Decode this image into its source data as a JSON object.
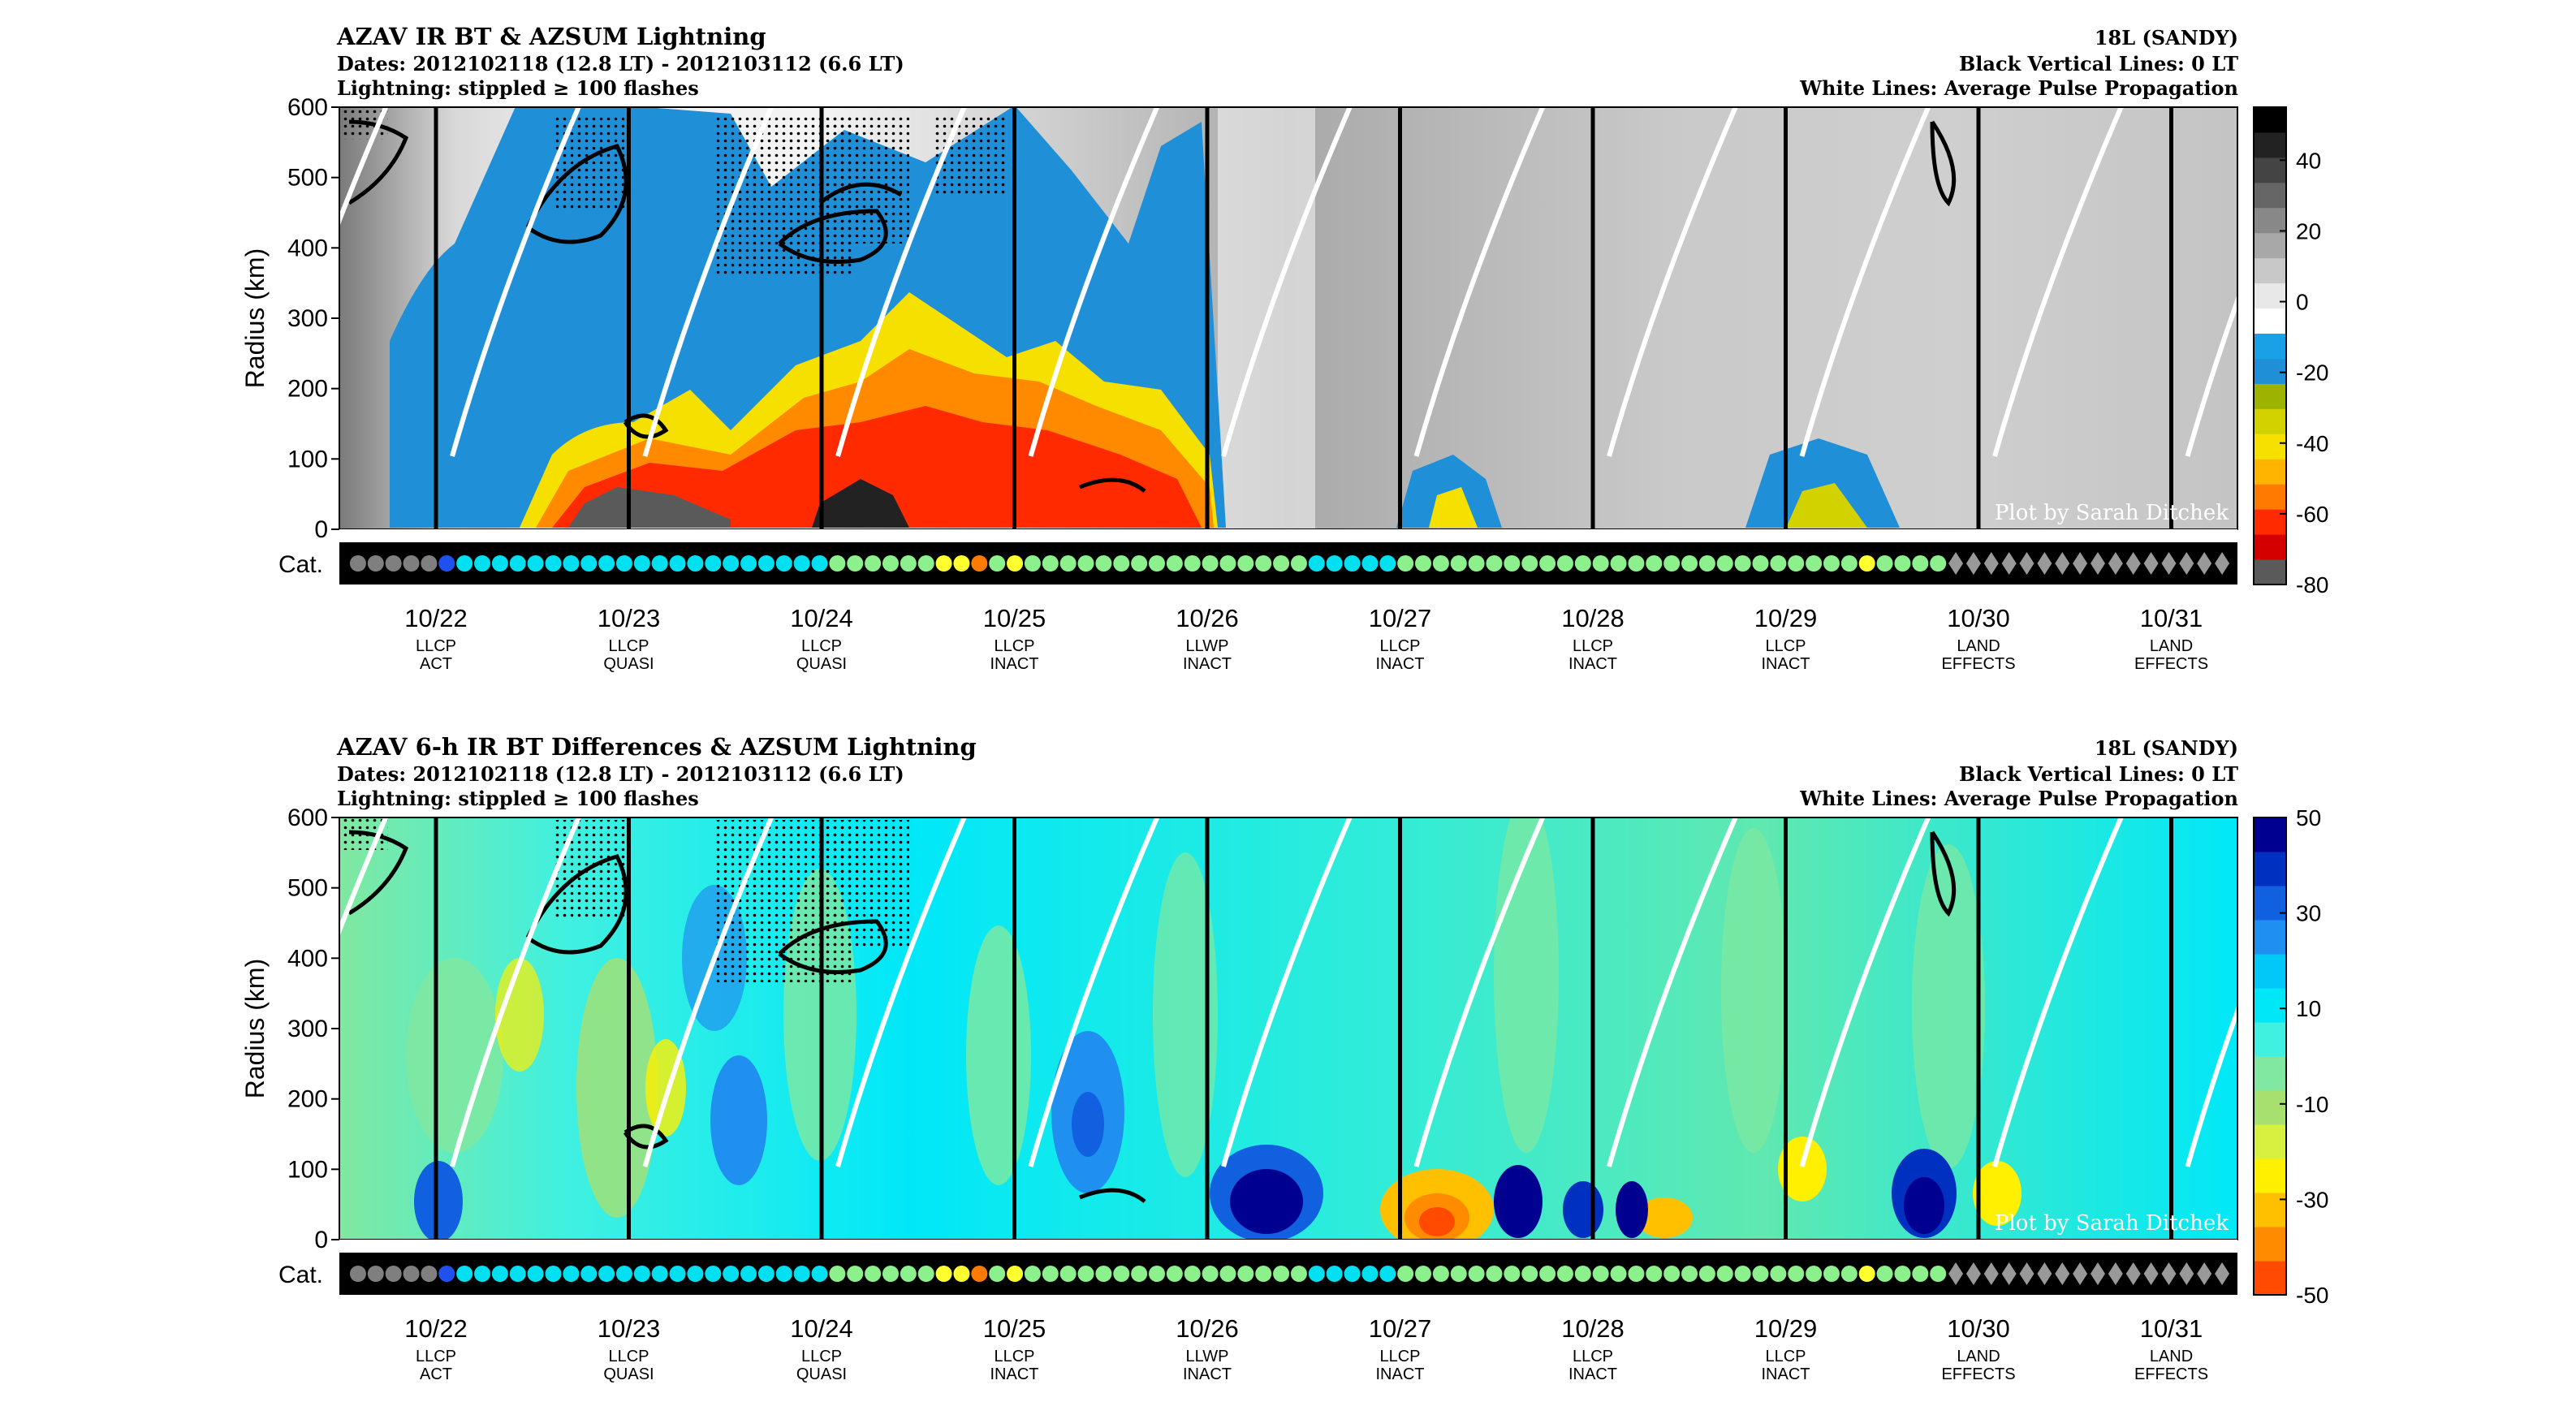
{
  "chart_data": [
    {
      "type": "heatmap",
      "title": "AZAV IR BT & AZSUM Lightning",
      "subtitle_dates": "Dates: 2012102118 (12.8 LT) - 2012103112 (6.6 LT)",
      "subtitle_lightning": "Lightning: stippled ≥ 100 flashes",
      "storm": "18L (SANDY)",
      "note_black": "Black Vertical Lines: 0 LT",
      "note_white": "White Lines: Average Pulse Propagation",
      "credit": "Plot by Sarah Ditchek",
      "ylabel": "Radius (km)",
      "yticks": [
        "600",
        "500",
        "400",
        "300",
        "200",
        "100",
        "0"
      ],
      "ylim": [
        0,
        600
      ],
      "cat_label": "Cat.",
      "colorbar_ticks": [
        "40",
        "20",
        "0",
        "-20",
        "-40",
        "-60",
        "-80"
      ],
      "colorbar_range": [
        -80,
        55
      ],
      "colorbar_colors": [
        "#5a5a5a",
        "#d40000",
        "#ff2a00",
        "#ff7a00",
        "#ffb400",
        "#f5e000",
        "#d2d200",
        "#9cb400",
        "#1f8fd8",
        "#1aa0e6",
        "#ffffff",
        "#e8e8e8",
        "#c8c8c8",
        "#a8a8a8",
        "#888888",
        "#666666",
        "#444444",
        "#222222",
        "#000000"
      ]
    },
    {
      "type": "heatmap",
      "title": "AZAV 6-h IR BT Differences & AZSUM Lightning",
      "subtitle_dates": "Dates: 2012102118 (12.8 LT) - 2012103112 (6.6 LT)",
      "subtitle_lightning": "Lightning: stippled ≥ 100 flashes",
      "storm": "18L (SANDY)",
      "note_black": "Black Vertical Lines: 0 LT",
      "note_white": "White Lines: Average Pulse Propagation",
      "credit": "Plot by Sarah Ditchek",
      "ylabel": "Radius (km)",
      "yticks": [
        "600",
        "500",
        "400",
        "300",
        "200",
        "100",
        "0"
      ],
      "ylim": [
        0,
        600
      ],
      "cat_label": "Cat.",
      "colorbar_ticks": [
        "50",
        "30",
        "10",
        "-10",
        "-30",
        "-50"
      ],
      "colorbar_range": [
        -50,
        50
      ],
      "colorbar_colors": [
        "#ff4a00",
        "#ff8c00",
        "#ffc000",
        "#fff000",
        "#d8f040",
        "#a8e070",
        "#80e8a0",
        "#40f0e0",
        "#00e8f8",
        "#00c8f8",
        "#2090f0",
        "#1060e0",
        "#0030c0",
        "#000090"
      ]
    }
  ],
  "x_axis": {
    "dates": [
      "10/22",
      "10/23",
      "10/24",
      "10/25",
      "10/26",
      "10/27",
      "10/28",
      "10/29",
      "10/30",
      "10/31"
    ],
    "labels_line1": [
      "LLCP",
      "LLCP",
      "LLCP",
      "LLCP",
      "LLWP",
      "LLCP",
      "LLCP",
      "LLCP",
      "LAND",
      "LAND"
    ],
    "labels_line2": [
      "ACT",
      "QUASI",
      "QUASI",
      "INACT",
      "INACT",
      "INACT",
      "INACT",
      "INACT",
      "EFFECTS",
      "EFFECTS"
    ]
  },
  "category_sequence": [
    "TD",
    "TD",
    "TD",
    "TD",
    "TD",
    "TS",
    "TS",
    "TS",
    "TS",
    "TS",
    "TS",
    "TS",
    "TS",
    "TS",
    "TS",
    "TS",
    "TS",
    "TS",
    "TS",
    "TS",
    "TS",
    "TS",
    "TS",
    "TS",
    "TS",
    "TS",
    "TS",
    "C1",
    "C1",
    "C1",
    "C1",
    "C1",
    "C1",
    "C2",
    "C2",
    "C3",
    "C1",
    "C2",
    "C1",
    "C1",
    "C1",
    "C1",
    "C1",
    "C1",
    "C1",
    "C1",
    "C1",
    "C1",
    "C1",
    "C1",
    "C1",
    "C1",
    "C1",
    "C1",
    "TS",
    "TS",
    "TS",
    "TS",
    "TS",
    "C1",
    "C1",
    "C1",
    "C1",
    "C1",
    "C1",
    "C1",
    "C1",
    "C1",
    "C1",
    "C1",
    "C1",
    "C1",
    "C1",
    "C1",
    "C1",
    "C1",
    "C1",
    "C1",
    "C1",
    "C1",
    "C1",
    "C1",
    "C1",
    "C1",
    "C1",
    "C2",
    "C1",
    "C1",
    "C1",
    "C1",
    "ET",
    "ET",
    "ET",
    "ET",
    "ET",
    "ET",
    "ET",
    "ET",
    "ET",
    "ET",
    "ET",
    "ET",
    "ET",
    "ET",
    "ET",
    "ET"
  ],
  "category_colors": {
    "TD": "#7f7f7f",
    "TS": "#00e0f0",
    "C1": "#8cf08c",
    "C2": "#ffff30",
    "C3": "#ff7a00",
    "ET": "#999999",
    "start": "#2050f0"
  }
}
